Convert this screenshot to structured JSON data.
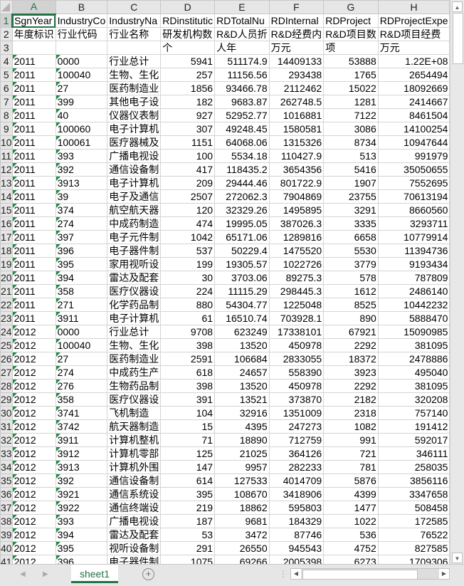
{
  "sheet": {
    "active_cell": "A1",
    "tab_label": "sheet1",
    "columns": [
      "A",
      "B",
      "C",
      "D",
      "E",
      "F",
      "G",
      "H",
      ""
    ],
    "rows": [
      [
        "SgnYear",
        "IndustryCo",
        "IndustryNa",
        "RDinstitutic",
        "RDTotalNu",
        "RDInternal",
        "RDProject",
        "RDProjectExpe"
      ],
      [
        "年度标识",
        "行业代码",
        "行业名称",
        "研发机构数",
        "R&D人员折",
        "R&D经费内",
        "R&D项目数",
        "R&D项目经费"
      ],
      [
        "",
        "",
        "",
        "个",
        "人年",
        "万元",
        "项",
        "万元"
      ],
      [
        "2011",
        "0000",
        "行业总计",
        "5941",
        "511174.9",
        "14409133",
        "53888",
        "1.22E+08"
      ],
      [
        "2011",
        "100040",
        "生物、生化",
        "257",
        "11156.56",
        "293438",
        "1765",
        "2654494"
      ],
      [
        "2011",
        "27",
        "医药制造业",
        "1856",
        "93466.78",
        "2112462",
        "15022",
        "18092669"
      ],
      [
        "2011",
        "399",
        "其他电子设",
        "182",
        "9683.87",
        "262748.5",
        "1281",
        "2414667"
      ],
      [
        "2011",
        "40",
        "仪器仪表制",
        "927",
        "52952.77",
        "1016881",
        "7122",
        "8461504"
      ],
      [
        "2011",
        "100060",
        "电子计算机",
        "307",
        "49248.45",
        "1580581",
        "3086",
        "14100254"
      ],
      [
        "2011",
        "100061",
        "医疗器械及",
        "1151",
        "64068.06",
        "1315326",
        "8734",
        "10947644"
      ],
      [
        "2011",
        "393",
        "广播电视设",
        "100",
        "5534.18",
        "110427.9",
        "513",
        "991979"
      ],
      [
        "2011",
        "392",
        "通信设备制",
        "417",
        "118435.2",
        "3654356",
        "5416",
        "35050655"
      ],
      [
        "2011",
        "3913",
        "电子计算机",
        "209",
        "29444.46",
        "801722.9",
        "1907",
        "7552695"
      ],
      [
        "2011",
        "39",
        "电子及通信",
        "2507",
        "272062.3",
        "7904869",
        "23755",
        "70613194"
      ],
      [
        "2011",
        "374",
        "航空航天器",
        "120",
        "32329.26",
        "1495895",
        "3291",
        "8660560"
      ],
      [
        "2011",
        "274",
        "中成药制造",
        "474",
        "19995.05",
        "387026.3",
        "3335",
        "3293711"
      ],
      [
        "2011",
        "397",
        "电子元件制",
        "1042",
        "65171.06",
        "1289816",
        "6658",
        "10779914"
      ],
      [
        "2011",
        "396",
        "电子器件制",
        "537",
        "50229.4",
        "1475520",
        "5530",
        "11394736"
      ],
      [
        "2011",
        "395",
        "家用视听设",
        "199",
        "19305.57",
        "1022726",
        "3779",
        "9193434"
      ],
      [
        "2011",
        "394",
        "雷达及配套",
        "30",
        "3703.06",
        "89275.3",
        "578",
        "787809"
      ],
      [
        "2011",
        "358",
        "医疗仪器设",
        "224",
        "11115.29",
        "298445.3",
        "1612",
        "2486140"
      ],
      [
        "2011",
        "271",
        "化学药品制",
        "880",
        "54304.77",
        "1225048",
        "8525",
        "10442232"
      ],
      [
        "2011",
        "3911",
        "电子计算机",
        "61",
        "16510.74",
        "703928.1",
        "890",
        "5888470"
      ],
      [
        "2012",
        "0000",
        "行业总计",
        "9708",
        "623249",
        "17338101",
        "67921",
        "15090985"
      ],
      [
        "2012",
        "100040",
        "生物、生化",
        "398",
        "13520",
        "450978",
        "2292",
        "381095"
      ],
      [
        "2012",
        "27",
        "医药制造业",
        "2591",
        "106684",
        "2833055",
        "18372",
        "2478886"
      ],
      [
        "2012",
        "274",
        "中成药生产",
        "618",
        "24657",
        "558390",
        "3923",
        "495040"
      ],
      [
        "2012",
        "276",
        "生物药品制",
        "398",
        "13520",
        "450978",
        "2292",
        "381095"
      ],
      [
        "2012",
        "358",
        "医疗仪器设",
        "391",
        "13521",
        "373870",
        "2182",
        "320208"
      ],
      [
        "2012",
        "3741",
        "飞机制造",
        "104",
        "32916",
        "1351009",
        "2318",
        "757140"
      ],
      [
        "2012",
        "3742",
        "航天器制造",
        "15",
        "4395",
        "247273",
        "1082",
        "191412"
      ],
      [
        "2012",
        "3911",
        "计算机整机",
        "71",
        "18890",
        "712759",
        "991",
        "592017"
      ],
      [
        "2012",
        "3912",
        "计算机零部",
        "125",
        "21025",
        "364126",
        "721",
        "346111"
      ],
      [
        "2012",
        "3913",
        "计算机外围",
        "147",
        "9957",
        "282233",
        "781",
        "258035"
      ],
      [
        "2012",
        "392",
        "通信设备制",
        "614",
        "127533",
        "4014709",
        "5876",
        "3856116"
      ],
      [
        "2012",
        "3921",
        "通信系统设",
        "395",
        "108670",
        "3418906",
        "4399",
        "3347658"
      ],
      [
        "2012",
        "3922",
        "通信终端设",
        "219",
        "18862",
        "595803",
        "1477",
        "508458"
      ],
      [
        "2012",
        "393",
        "广播电视设",
        "187",
        "9681",
        "184329",
        "1022",
        "172585"
      ],
      [
        "2012",
        "394",
        "雷达及配套",
        "53",
        "3472",
        "87746",
        "536",
        "76522"
      ],
      [
        "2012",
        "395",
        "视听设备制",
        "291",
        "26550",
        "945543",
        "4752",
        "827585"
      ],
      [
        "2012",
        "396",
        "电子器件制",
        "1075",
        "69266",
        "2005398",
        "6273",
        "1709306"
      ]
    ]
  },
  "colors": {
    "accent": "#217346",
    "text_marker": "#1e8c45"
  },
  "icons": {
    "add_sheet": "plus-circle-icon",
    "scroll_up": "triangle-up-icon",
    "scroll_down": "triangle-down-icon",
    "scroll_left": "triangle-left-icon",
    "scroll_right": "triangle-right-icon"
  }
}
